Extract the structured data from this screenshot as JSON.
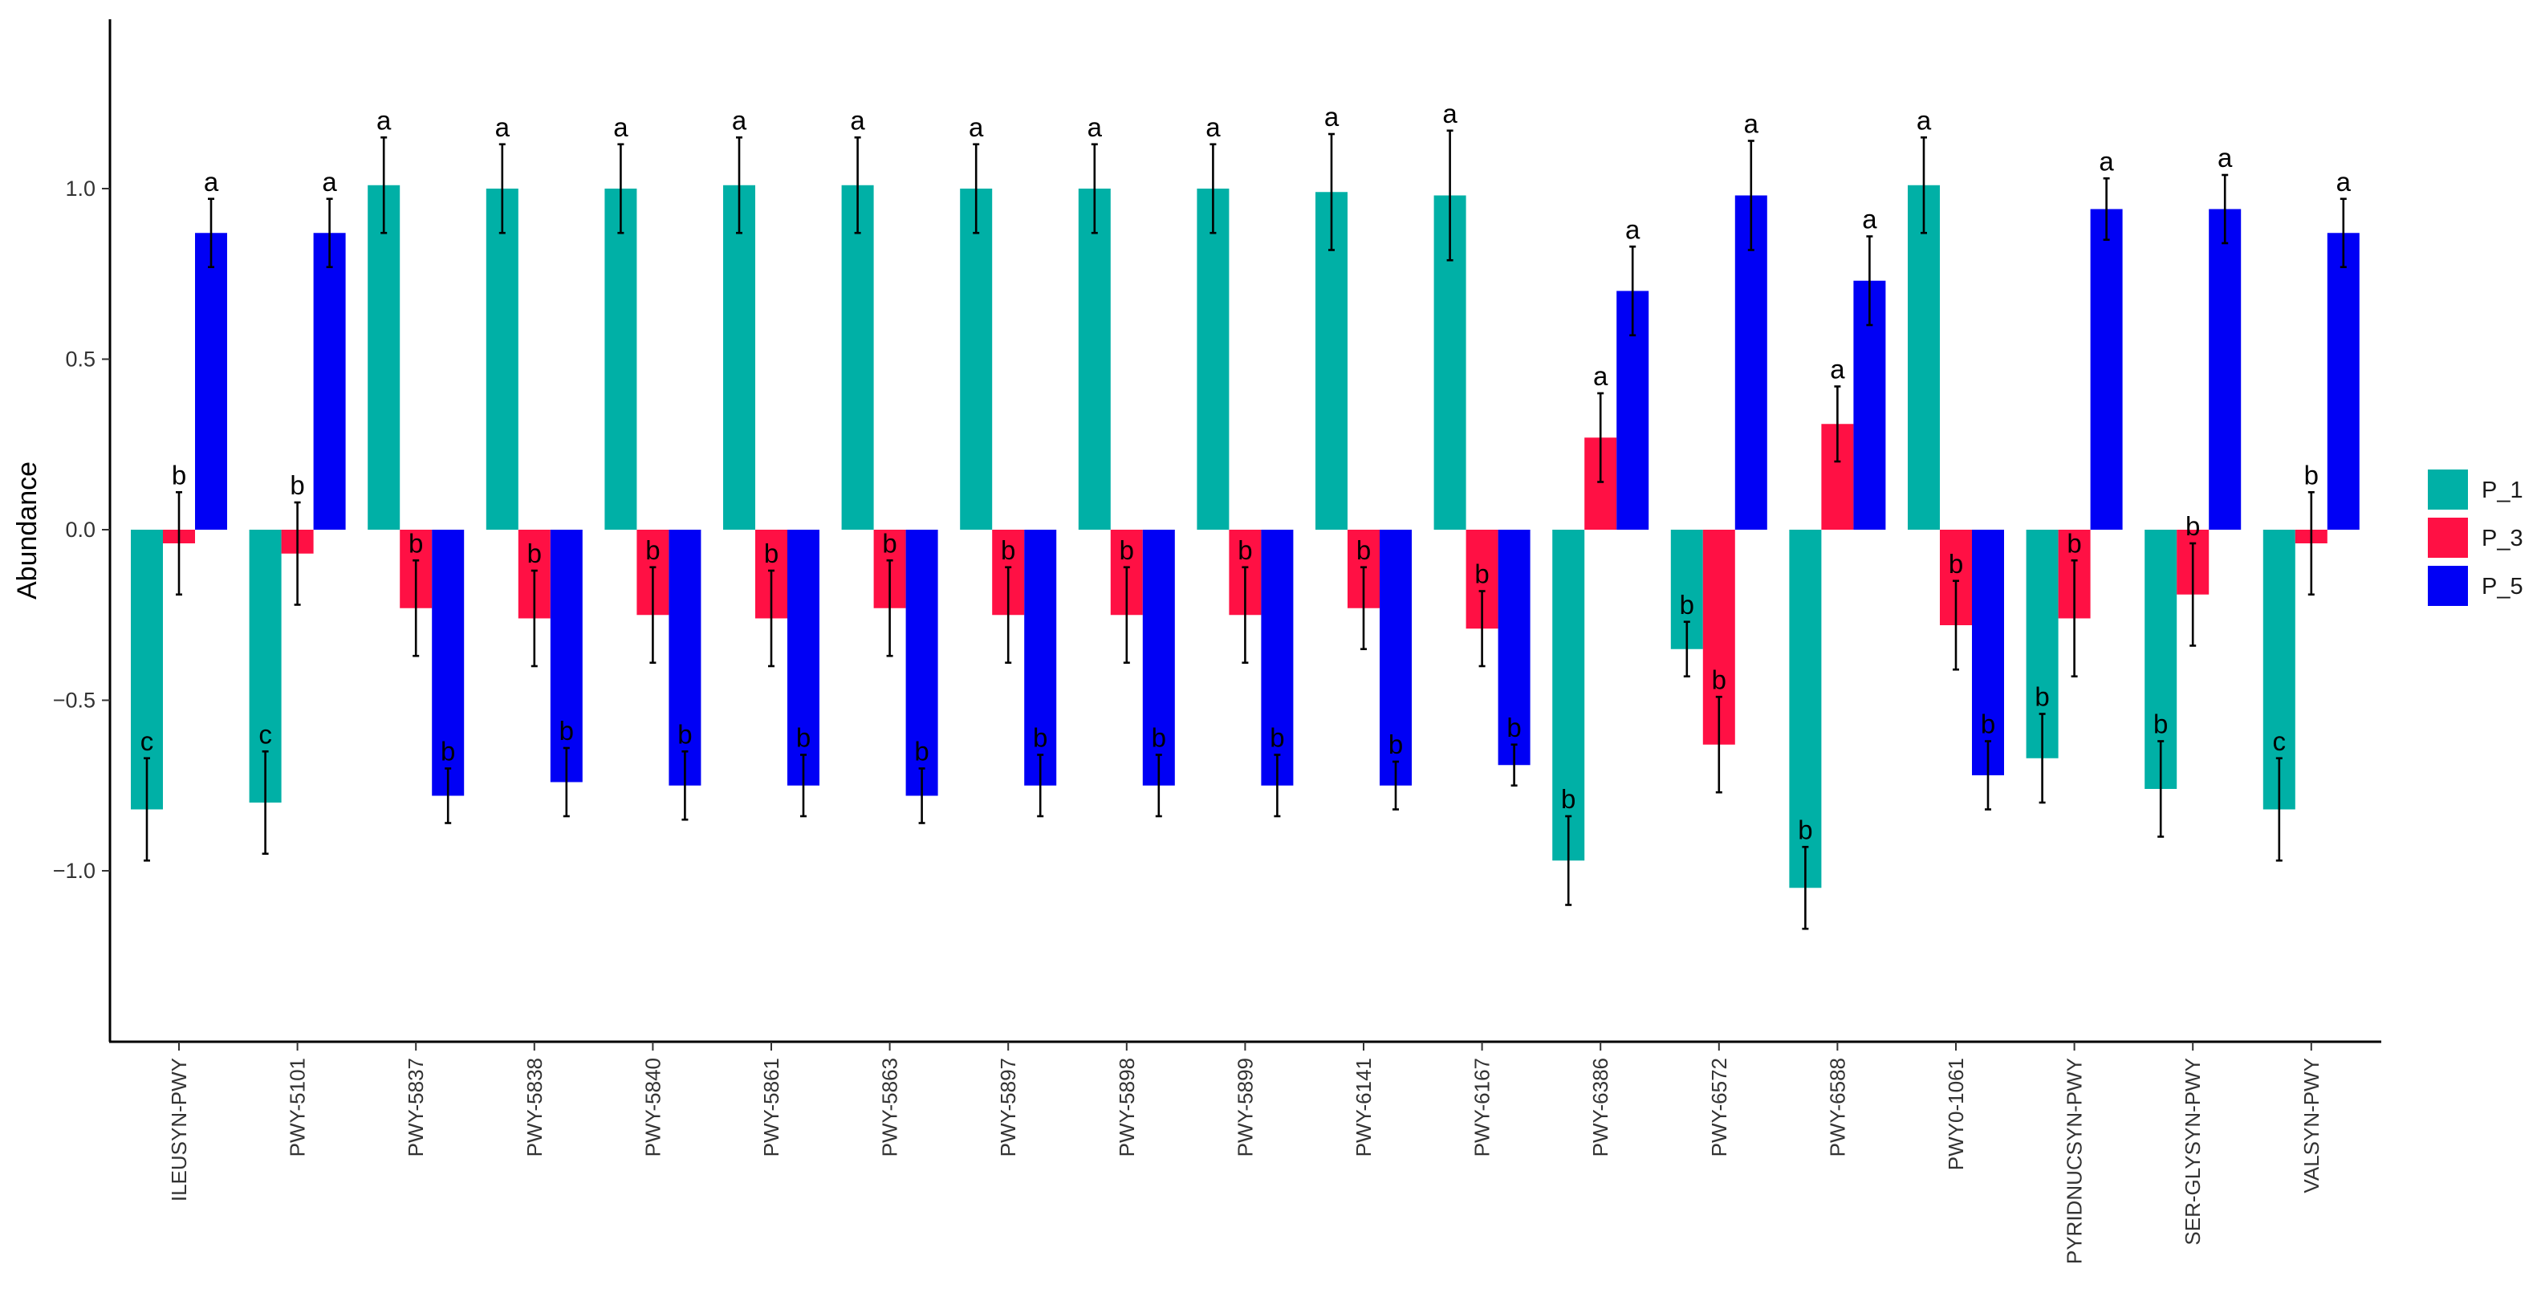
{
  "chart_data": {
    "type": "bar",
    "title": "",
    "xlabel": "",
    "ylabel": "Abundance",
    "ylim": [
      -1.5,
      1.5
    ],
    "yticks": [
      -1.0,
      -0.5,
      0.0,
      0.5,
      1.0
    ],
    "ytick_labels": [
      "−1.0",
      "−0.5",
      "0.0",
      "0.5",
      "1.0"
    ],
    "legend_position": "right",
    "categories": [
      "ILEUSYN-PWY",
      "PWY-5101",
      "PWY-5837",
      "PWY-5838",
      "PWY-5840",
      "PWY-5861",
      "PWY-5863",
      "PWY-5897",
      "PWY-5898",
      "PWY-5899",
      "PWY-6141",
      "PWY-6167",
      "PWY-6386",
      "PWY-6572",
      "PWY-6588",
      "PWY0-1061",
      "PYRIDNUCSYN-PWY",
      "SER-GLYSYN-PWY",
      "VALSYN-PWY"
    ],
    "series": [
      {
        "name": "P_1",
        "color": "#00B0A6",
        "values": [
          -0.82,
          -0.8,
          1.01,
          1.0,
          1.0,
          1.01,
          1.01,
          1.0,
          1.0,
          1.0,
          0.99,
          0.98,
          -0.97,
          -0.35,
          -1.05,
          1.01,
          -0.67,
          -0.76,
          -0.82
        ],
        "errors": [
          0.15,
          0.15,
          0.14,
          0.13,
          0.13,
          0.14,
          0.14,
          0.13,
          0.13,
          0.13,
          0.17,
          0.19,
          0.13,
          0.08,
          0.12,
          0.14,
          0.13,
          0.14,
          0.15
        ],
        "labels": [
          "c",
          "c",
          "a",
          "a",
          "a",
          "a",
          "a",
          "a",
          "a",
          "a",
          "a",
          "a",
          "b",
          "b",
          "b",
          "a",
          "b",
          "b",
          "c"
        ]
      },
      {
        "name": "P_3",
        "color": "#FF1044",
        "values": [
          -0.04,
          -0.07,
          -0.23,
          -0.26,
          -0.25,
          -0.26,
          -0.23,
          -0.25,
          -0.25,
          -0.25,
          -0.23,
          -0.29,
          0.27,
          -0.63,
          0.31,
          -0.28,
          -0.26,
          -0.19,
          -0.04
        ],
        "errors": [
          0.15,
          0.15,
          0.14,
          0.14,
          0.14,
          0.14,
          0.14,
          0.14,
          0.14,
          0.14,
          0.12,
          0.11,
          0.13,
          0.14,
          0.11,
          0.13,
          0.17,
          0.15,
          0.15
        ],
        "labels": [
          "b",
          "b",
          "b",
          "b",
          "b",
          "b",
          "b",
          "b",
          "b",
          "b",
          "b",
          "b",
          "a",
          "b",
          "a",
          "b",
          "b",
          "b",
          "b"
        ]
      },
      {
        "name": "P_5",
        "color": "#0000F5",
        "values": [
          0.87,
          0.87,
          -0.78,
          -0.74,
          -0.75,
          -0.75,
          -0.78,
          -0.75,
          -0.75,
          -0.75,
          -0.75,
          -0.69,
          0.7,
          0.98,
          0.73,
          -0.72,
          0.94,
          0.94,
          0.87
        ],
        "errors": [
          0.1,
          0.1,
          0.08,
          0.1,
          0.1,
          0.09,
          0.08,
          0.09,
          0.09,
          0.09,
          0.07,
          0.06,
          0.13,
          0.16,
          0.13,
          0.1,
          0.09,
          0.1,
          0.1
        ],
        "labels": [
          "a",
          "a",
          "b",
          "b",
          "b",
          "b",
          "b",
          "b",
          "b",
          "b",
          "b",
          "b",
          "a",
          "a",
          "a",
          "b",
          "a",
          "a",
          "a"
        ]
      }
    ]
  }
}
